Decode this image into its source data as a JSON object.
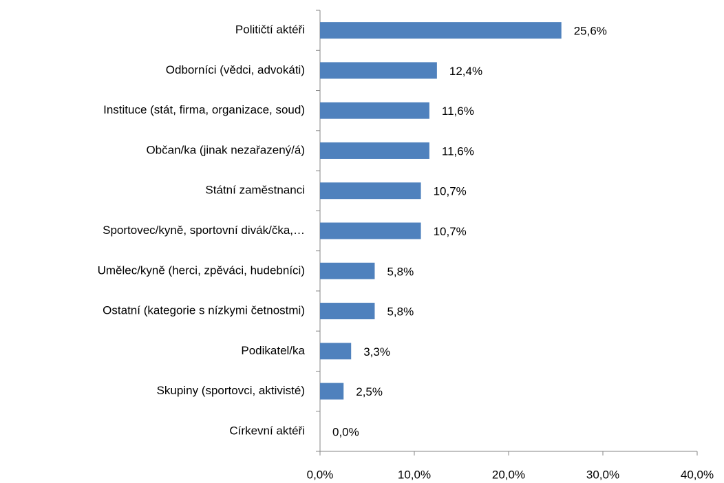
{
  "chart_data": {
    "type": "bar",
    "orientation": "horizontal",
    "categories": [
      "Političtí aktéři",
      "Odborníci (vědci, advokáti)",
      "Instituce (stát, firma, organizace, soud)",
      "Občan/ka (jinak nezařazený/á)",
      "Státní zaměstnanci",
      "Sportovec/kyně, sportovní divák/čka,…",
      "Umělec/kyně (herci, zpěváci, hudebníci)",
      "Ostatní (kategorie s nízkymi četnostmi)",
      "Podikatel/ka",
      "Skupiny (sportovci, aktivisté)",
      "Církevní aktéři"
    ],
    "values": [
      25.6,
      12.4,
      11.6,
      11.6,
      10.7,
      10.7,
      5.8,
      5.8,
      3.3,
      2.5,
      0.0
    ],
    "value_labels": [
      "25,6%",
      "12,4%",
      "11,6%",
      "11,6%",
      "10,7%",
      "10,7%",
      "5,8%",
      "5,8%",
      "3,3%",
      "2,5%",
      "0,0%"
    ],
    "color": "#4f81bd",
    "xlim": [
      0,
      40
    ],
    "xticks": [
      {
        "value": 0,
        "label": "0,0%"
      },
      {
        "value": 10,
        "label": "10,0%"
      },
      {
        "value": 20,
        "label": "20,0%"
      },
      {
        "value": 30,
        "label": "30,0%"
      },
      {
        "value": 40,
        "label": "40,0%"
      }
    ],
    "grid": false
  }
}
